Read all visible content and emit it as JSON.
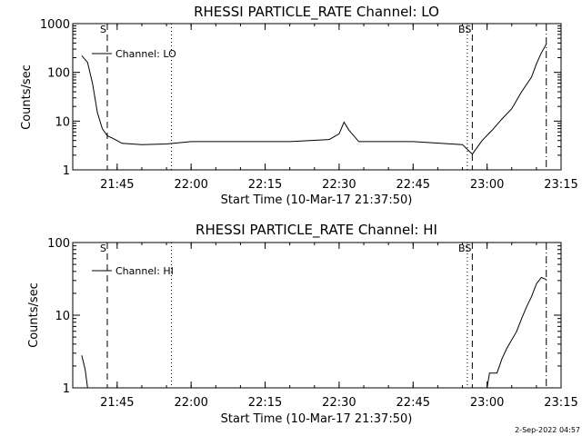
{
  "footer_timestamp": "2-Sep-2022 04:57",
  "chart_data": [
    {
      "type": "line",
      "title": "RHESSI PARTICLE_RATE Channel: LO",
      "xlabel": "Start Time (10-Mar-17 21:37:50)",
      "ylabel": "Counts/sec",
      "yscale": "log",
      "ylim": [
        1,
        1000
      ],
      "xlim_minutes": [
        21.6,
        23.25
      ],
      "x_ticks": [
        "21:45",
        "22:00",
        "22:15",
        "22:30",
        "22:45",
        "23:00",
        "23:15"
      ],
      "y_ticks": [
        "1",
        "10",
        "100",
        "1000"
      ],
      "legend": "top-left",
      "markers": [
        {
          "label": "S",
          "style": "dash",
          "x": "21:43"
        },
        {
          "label": "",
          "style": "dot",
          "x": "21:56"
        },
        {
          "label": "",
          "style": "dot",
          "x": "22:56"
        },
        {
          "label": "BS",
          "style": "dash",
          "x": "22:57"
        },
        {
          "label": "",
          "style": "dashdot",
          "x": "23:12"
        }
      ],
      "series": [
        {
          "name": "Channel: LO",
          "points": [
            [
              "21:37:50",
              220
            ],
            [
              "21:39",
              160
            ],
            [
              "21:40",
              60
            ],
            [
              "21:41",
              15
            ],
            [
              "21:42",
              7
            ],
            [
              "21:43",
              5
            ],
            [
              "21:44",
              4.5
            ],
            [
              "21:46",
              3.5
            ],
            [
              "21:50",
              3.3
            ],
            [
              "21:55",
              3.4
            ],
            [
              "22:00",
              3.8
            ],
            [
              "22:10",
              3.8
            ],
            [
              "22:20",
              3.8
            ],
            [
              "22:28",
              4.2
            ],
            [
              "22:30",
              5.5
            ],
            [
              "22:31",
              9.5
            ],
            [
              "22:32",
              6.5
            ],
            [
              "22:34",
              3.8
            ],
            [
              "22:45",
              3.8
            ],
            [
              "22:55",
              3.3
            ],
            [
              "22:57",
              2.1
            ],
            [
              "22:59",
              4.0
            ],
            [
              "23:01",
              6.5
            ],
            [
              "23:03",
              11
            ],
            [
              "23:05",
              18
            ],
            [
              "23:07",
              40
            ],
            [
              "23:09",
              80
            ],
            [
              "23:10",
              150
            ],
            [
              "23:11",
              250
            ],
            [
              "23:12",
              380
            ]
          ]
        }
      ]
    },
    {
      "type": "line",
      "title": "RHESSI PARTICLE_RATE Channel: HI",
      "xlabel": "Start Time (10-Mar-17 21:37:50)",
      "ylabel": "Counts/sec",
      "yscale": "log",
      "ylim": [
        1,
        100
      ],
      "xlim_minutes": [
        21.6,
        23.25
      ],
      "x_ticks": [
        "21:45",
        "22:00",
        "22:15",
        "22:30",
        "22:45",
        "23:00",
        "23:15"
      ],
      "y_ticks": [
        "1",
        "10",
        "100"
      ],
      "legend": "top-left",
      "markers": [
        {
          "label": "S",
          "style": "dash",
          "x": "21:43"
        },
        {
          "label": "",
          "style": "dot",
          "x": "21:56"
        },
        {
          "label": "",
          "style": "dot",
          "x": "22:56"
        },
        {
          "label": "BS",
          "style": "dash",
          "x": "22:57"
        },
        {
          "label": "",
          "style": "dashdot",
          "x": "23:12"
        }
      ],
      "series": [
        {
          "name": "Channel: HI",
          "points": [
            [
              "21:37:50",
              2.8
            ],
            [
              "21:38:30",
              1.8
            ],
            [
              "21:39",
              1.0
            ],
            [
              "23:00",
              1.0
            ],
            [
              "23:00:30",
              1.6
            ],
            [
              "23:02",
              1.6
            ],
            [
              "23:03",
              2.5
            ],
            [
              "23:04",
              3.5
            ],
            [
              "23:06",
              6
            ],
            [
              "23:07",
              9
            ],
            [
              "23:08",
              13
            ],
            [
              "23:09",
              18
            ],
            [
              "23:10",
              27
            ],
            [
              "23:11",
              33
            ],
            [
              "23:12",
              31
            ]
          ]
        }
      ]
    }
  ]
}
